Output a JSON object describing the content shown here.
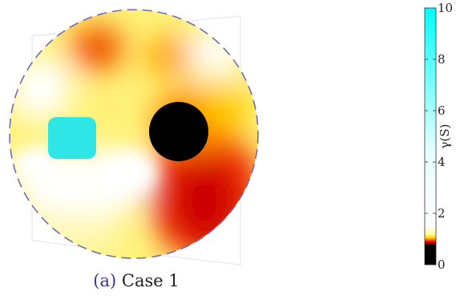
{
  "chart_data": {
    "type": "heatmap",
    "colorbar": {
      "label": "γ(S)",
      "ticks": [
        0,
        2,
        4,
        6,
        8,
        10
      ],
      "range": [
        0,
        10
      ],
      "colormap": [
        "#000000",
        "#ff0000",
        "#ffd700",
        "#ffff99",
        "#ffffff",
        "#e6ffff",
        "#00ffff"
      ]
    },
    "regions": [
      {
        "name": "background",
        "value": 1.4
      },
      {
        "name": "low-conductivity inclusion",
        "value": 0
      },
      {
        "name": "high-conductivity inclusion",
        "value": 10
      }
    ],
    "caption": {
      "label": "(a)",
      "text": "Case 1"
    }
  }
}
